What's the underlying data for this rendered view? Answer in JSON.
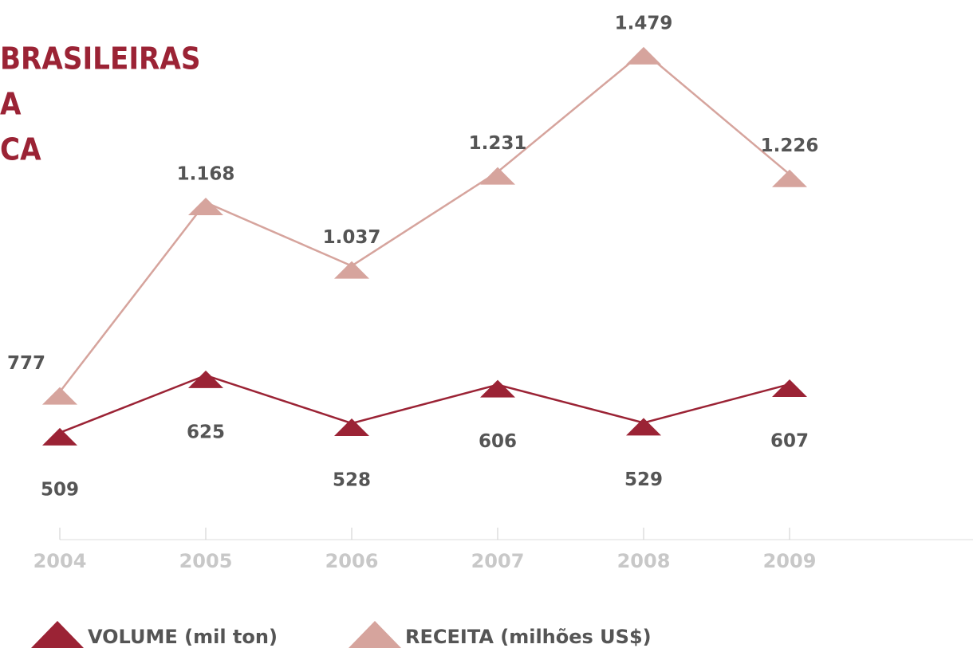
{
  "chart_data": {
    "type": "line",
    "title": [
      "BRASILEIRAS",
      "A",
      "CA"
    ],
    "categories": [
      "2004",
      "2005",
      "2006",
      "2007",
      "2008",
      "2009"
    ],
    "ylim": [
      500,
      1520
    ],
    "y2lim": [
      320,
      1320
    ],
    "series": [
      {
        "name": "VOLUME (mil ton)",
        "color": "#9b2335",
        "axis": "y2",
        "values": [
          509,
          625,
          528,
          606,
          529,
          607
        ]
      },
      {
        "name": "RECEITA (milhões US$)",
        "color": "#d6a49d",
        "values": [
          777,
          1168,
          1037,
          1231,
          1479,
          1226
        ],
        "value_labels": [
          "777",
          "1.168",
          "1.037",
          "1.231",
          "1.479",
          "1.226"
        ]
      }
    ]
  }
}
